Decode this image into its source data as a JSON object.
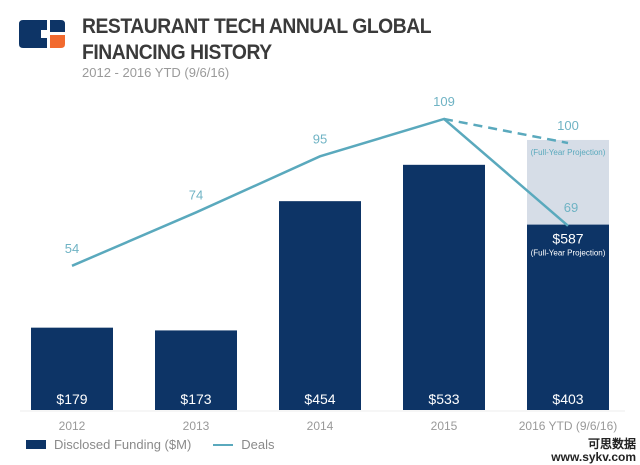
{
  "header": {
    "title": "RESTAURANT TECH ANNUAL GLOBAL FINANCING HISTORY",
    "subtitle": "2012 - 2016 YTD (9/6/16)"
  },
  "chart_data": {
    "type": "bar+line",
    "categories": [
      "2012",
      "2013",
      "2014",
      "2015",
      "2016 YTD (9/6/16)"
    ],
    "series": [
      {
        "name": "Disclosed Funding ($M)",
        "type": "bar",
        "values": [
          179,
          173,
          454,
          533,
          403
        ],
        "labels": [
          "$179",
          "$173",
          "$454",
          "$533",
          "$403"
        ],
        "color": "#0d3466"
      },
      {
        "name": "Deals",
        "type": "line",
        "values": [
          54,
          74,
          95,
          109,
          69
        ],
        "color": "#5aa9bd"
      }
    ],
    "projection": {
      "funding": 587,
      "funding_label": "$587",
      "deals": 100,
      "note": "(Full-Year Projection)",
      "bar_color": "#d6dde7"
    },
    "legend_position": "bottom-left",
    "grid": false
  },
  "legend": {
    "funding": "Disclosed Funding ($M)",
    "deals": "Deals"
  },
  "watermark": {
    "line1": "可思数据",
    "line2": "www.sykv.com"
  }
}
